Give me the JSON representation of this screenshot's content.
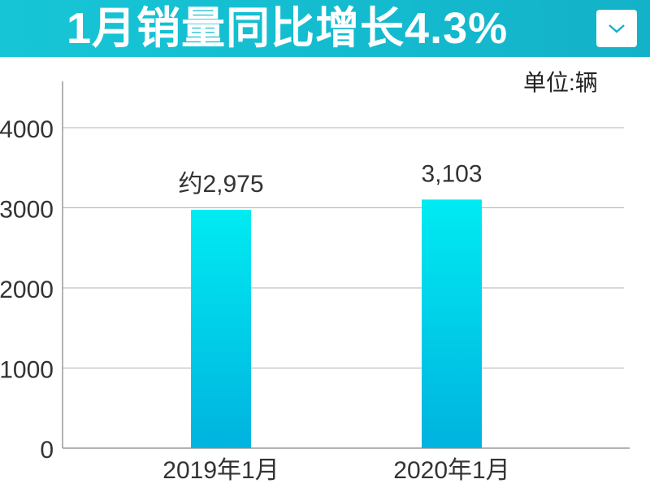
{
  "header": {
    "title": "1月销量同比增长4.3%",
    "accent_color": "#16c6d6",
    "dropdown_icon": "chevron-down-icon"
  },
  "chart_data": {
    "type": "bar",
    "title": "1月销量同比增长4.3%",
    "unit_label": "单位:辆",
    "categories": [
      "2019年1月",
      "2020年1月"
    ],
    "values": [
      2975,
      3103
    ],
    "data_labels": [
      "约2,975",
      "3,103"
    ],
    "ylim": [
      0,
      4500
    ],
    "yticks": [
      0,
      1000,
      2000,
      3000,
      4000
    ],
    "ytick_labels": [
      "0",
      "1000",
      "2000",
      "3000",
      "4000"
    ],
    "grid": true,
    "bar_color_top": "#00ebf2",
    "bar_color_bottom": "#00b3df"
  }
}
